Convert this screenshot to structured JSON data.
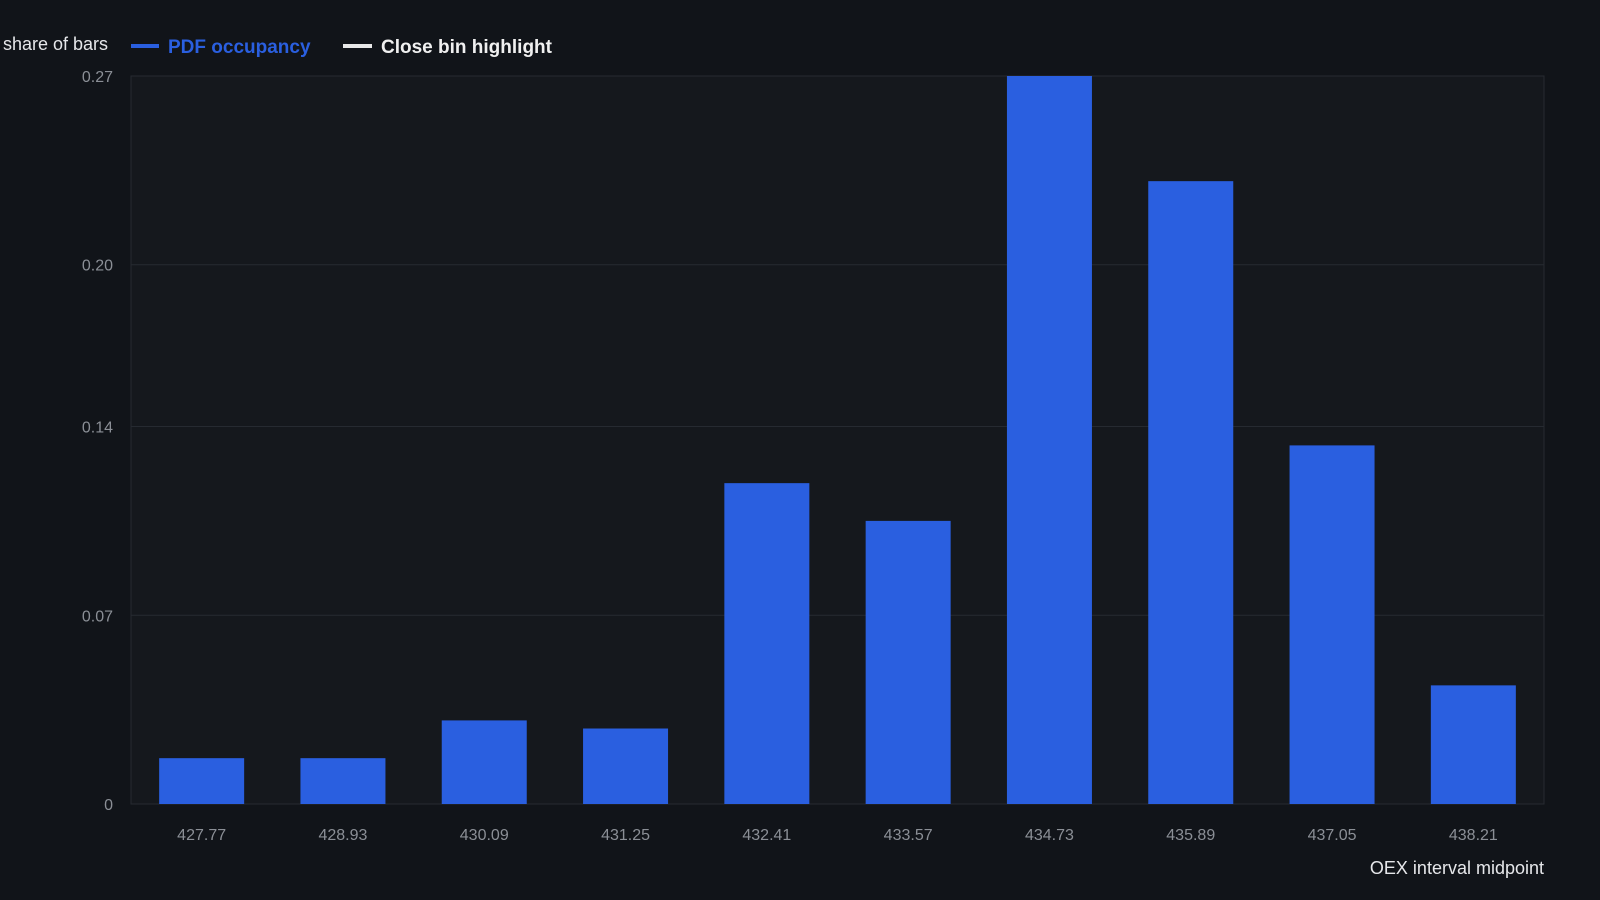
{
  "chart_data": {
    "type": "bar",
    "title": "",
    "ylabel": "share of bars",
    "xlabel": "OEX interval midpoint",
    "ylim": [
      0,
      0.27
    ],
    "yticks": [
      0,
      0.07,
      0.14,
      0.2,
      0.27
    ],
    "ytick_labels": [
      "0",
      "0.07",
      "0.14",
      "0.20",
      "0.27"
    ],
    "categories": [
      "427.77",
      "428.93",
      "430.09",
      "431.25",
      "432.41",
      "433.57",
      "434.73",
      "435.89",
      "437.05",
      "438.21"
    ],
    "series": [
      {
        "name": "PDF occupancy",
        "color": "#2a5fe0",
        "values": [
          0.017,
          0.017,
          0.031,
          0.028,
          0.119,
          0.105,
          0.27,
          0.231,
          0.133,
          0.044
        ]
      }
    ],
    "legend": {
      "placement": "top-left",
      "items": [
        {
          "label": "PDF occupancy",
          "color": "#2a5fe0",
          "text_color": "#2a5fe0"
        },
        {
          "label": "Close bin highlight",
          "color": "#e8e8e8",
          "text_color": "#f0f0f0"
        }
      ]
    },
    "grid": true,
    "colors": {
      "background": "#111419",
      "plot_background": "#15181d",
      "grid": "#262a31",
      "tick_text": "#8b8f96",
      "axis_title": "#e6e7ea"
    }
  }
}
